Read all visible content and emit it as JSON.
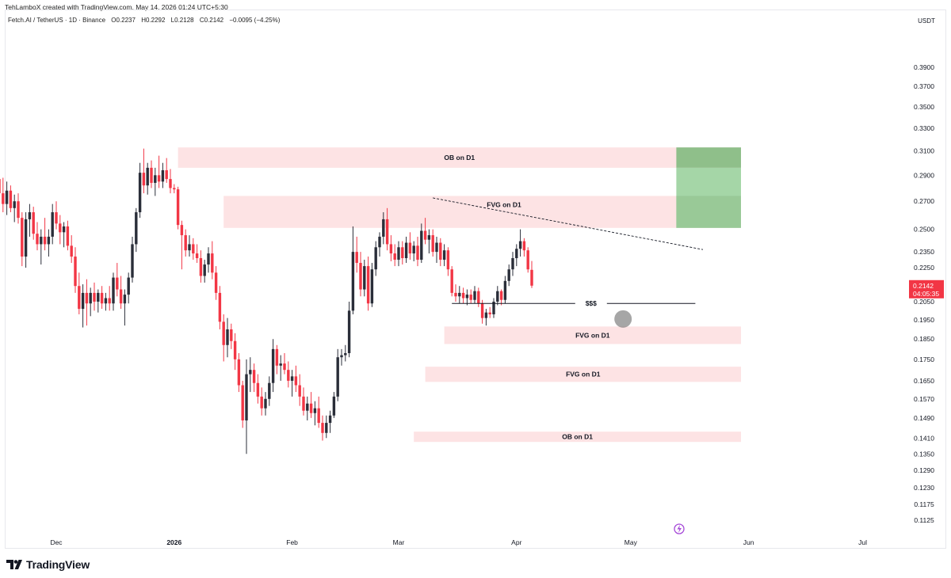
{
  "header": {
    "credit": "TehLamboX created with TradingView.com, May 14, 2026 01:24 UTC+5:30",
    "symbol": "Fetch.AI / TetherUS · 1D · Binance",
    "open": "O0.2237",
    "high": "H0.2292",
    "low": "L0.2128",
    "close": "C0.2142",
    "change": "−0.0095 (−4.25%)",
    "currency": "USDT"
  },
  "brand": {
    "name": "TradingView"
  },
  "colors": {
    "bull": "#2a2e39",
    "bear": "#f23645",
    "zone": "#fde3e4",
    "target": "#a5d6a7",
    "target_dark": "#8fbf8a",
    "price_tag": "#f23645"
  },
  "chart_data": {
    "type": "candlestick",
    "title": "Fetch.AI / TetherUS · 1D · Binance",
    "ylabel": "USDT",
    "yscale": "log",
    "ylim": [
      0.108,
      0.43
    ],
    "y_ticks": [
      "0.3900",
      "0.3700",
      "0.3500",
      "0.3300",
      "0.3100",
      "0.2900",
      "0.2700",
      "0.2500",
      "0.2350",
      "0.2250",
      "0.2050",
      "0.1950",
      "0.1850",
      "0.1750",
      "0.1650",
      "0.1570",
      "0.1490",
      "0.1410",
      "0.1350",
      "0.1290",
      "0.1230",
      "0.1175",
      "0.1125"
    ],
    "x_ticks": [
      {
        "label": "Dec",
        "date": "2025-12-01",
        "bold": false
      },
      {
        "label": "2026",
        "date": "2026-01-01",
        "bold": true
      },
      {
        "label": "Feb",
        "date": "2026-02-01",
        "bold": false
      },
      {
        "label": "Mar",
        "date": "2026-03-01",
        "bold": false
      },
      {
        "label": "Apr",
        "date": "2026-04-01",
        "bold": false
      },
      {
        "label": "May",
        "date": "2026-05-01",
        "bold": false
      },
      {
        "label": "Jun",
        "date": "2026-06-01",
        "bold": false
      },
      {
        "label": "Jul",
        "date": "2026-07-01",
        "bold": false
      }
    ],
    "first_candle_date": "2025-11-10",
    "last_price": "0.2142",
    "countdown": "04:05:35",
    "candles": [
      {
        "o": 0.285,
        "h": 0.322,
        "l": 0.268,
        "c": 0.302
      },
      {
        "o": 0.302,
        "h": 0.337,
        "l": 0.292,
        "c": 0.318
      },
      {
        "o": 0.318,
        "h": 0.345,
        "l": 0.3,
        "c": 0.307
      },
      {
        "o": 0.307,
        "h": 0.318,
        "l": 0.288,
        "c": 0.292
      },
      {
        "o": 0.292,
        "h": 0.3,
        "l": 0.27,
        "c": 0.278
      },
      {
        "o": 0.278,
        "h": 0.292,
        "l": 0.268,
        "c": 0.287
      },
      {
        "o": 0.287,
        "h": 0.295,
        "l": 0.272,
        "c": 0.276
      },
      {
        "o": 0.276,
        "h": 0.288,
        "l": 0.262,
        "c": 0.268
      },
      {
        "o": 0.268,
        "h": 0.285,
        "l": 0.26,
        "c": 0.278
      },
      {
        "o": 0.278,
        "h": 0.282,
        "l": 0.262,
        "c": 0.265
      },
      {
        "o": 0.265,
        "h": 0.275,
        "l": 0.255,
        "c": 0.27
      },
      {
        "o": 0.27,
        "h": 0.276,
        "l": 0.254,
        "c": 0.258
      },
      {
        "o": 0.258,
        "h": 0.262,
        "l": 0.226,
        "c": 0.232
      },
      {
        "o": 0.232,
        "h": 0.262,
        "l": 0.225,
        "c": 0.257
      },
      {
        "o": 0.257,
        "h": 0.268,
        "l": 0.245,
        "c": 0.262
      },
      {
        "o": 0.262,
        "h": 0.266,
        "l": 0.243,
        "c": 0.247
      },
      {
        "o": 0.247,
        "h": 0.255,
        "l": 0.236,
        "c": 0.24
      },
      {
        "o": 0.24,
        "h": 0.25,
        "l": 0.227,
        "c": 0.245
      },
      {
        "o": 0.245,
        "h": 0.258,
        "l": 0.236,
        "c": 0.24
      },
      {
        "o": 0.24,
        "h": 0.25,
        "l": 0.232,
        "c": 0.245
      },
      {
        "o": 0.245,
        "h": 0.268,
        "l": 0.24,
        "c": 0.262
      },
      {
        "o": 0.262,
        "h": 0.27,
        "l": 0.25,
        "c": 0.254
      },
      {
        "o": 0.254,
        "h": 0.26,
        "l": 0.24,
        "c": 0.248
      },
      {
        "o": 0.248,
        "h": 0.255,
        "l": 0.238,
        "c": 0.252
      },
      {
        "o": 0.252,
        "h": 0.256,
        "l": 0.236,
        "c": 0.239
      },
      {
        "o": 0.239,
        "h": 0.246,
        "l": 0.228,
        "c": 0.232
      },
      {
        "o": 0.232,
        "h": 0.238,
        "l": 0.21,
        "c": 0.214
      },
      {
        "o": 0.214,
        "h": 0.222,
        "l": 0.198,
        "c": 0.201
      },
      {
        "o": 0.201,
        "h": 0.215,
        "l": 0.191,
        "c": 0.21
      },
      {
        "o": 0.21,
        "h": 0.218,
        "l": 0.192,
        "c": 0.204
      },
      {
        "o": 0.204,
        "h": 0.213,
        "l": 0.197,
        "c": 0.21
      },
      {
        "o": 0.21,
        "h": 0.216,
        "l": 0.2,
        "c": 0.205
      },
      {
        "o": 0.205,
        "h": 0.212,
        "l": 0.199,
        "c": 0.21
      },
      {
        "o": 0.21,
        "h": 0.214,
        "l": 0.201,
        "c": 0.204
      },
      {
        "o": 0.204,
        "h": 0.21,
        "l": 0.2,
        "c": 0.207
      },
      {
        "o": 0.207,
        "h": 0.214,
        "l": 0.2,
        "c": 0.204
      },
      {
        "o": 0.204,
        "h": 0.222,
        "l": 0.2,
        "c": 0.219
      },
      {
        "o": 0.219,
        "h": 0.228,
        "l": 0.208,
        "c": 0.212
      },
      {
        "o": 0.212,
        "h": 0.22,
        "l": 0.201,
        "c": 0.204
      },
      {
        "o": 0.204,
        "h": 0.212,
        "l": 0.192,
        "c": 0.209
      },
      {
        "o": 0.209,
        "h": 0.222,
        "l": 0.204,
        "c": 0.219
      },
      {
        "o": 0.219,
        "h": 0.245,
        "l": 0.216,
        "c": 0.24
      },
      {
        "o": 0.24,
        "h": 0.265,
        "l": 0.235,
        "c": 0.262
      },
      {
        "o": 0.262,
        "h": 0.3,
        "l": 0.258,
        "c": 0.292
      },
      {
        "o": 0.292,
        "h": 0.312,
        "l": 0.276,
        "c": 0.282
      },
      {
        "o": 0.282,
        "h": 0.3,
        "l": 0.275,
        "c": 0.296
      },
      {
        "o": 0.296,
        "h": 0.302,
        "l": 0.28,
        "c": 0.284
      },
      {
        "o": 0.284,
        "h": 0.296,
        "l": 0.274,
        "c": 0.29
      },
      {
        "o": 0.29,
        "h": 0.306,
        "l": 0.28,
        "c": 0.285
      },
      {
        "o": 0.285,
        "h": 0.3,
        "l": 0.28,
        "c": 0.294
      },
      {
        "o": 0.294,
        "h": 0.304,
        "l": 0.284,
        "c": 0.287
      },
      {
        "o": 0.287,
        "h": 0.295,
        "l": 0.276,
        "c": 0.28
      },
      {
        "o": 0.28,
        "h": 0.283,
        "l": 0.276,
        "c": 0.279
      },
      {
        "o": 0.279,
        "h": 0.281,
        "l": 0.25,
        "c": 0.253
      },
      {
        "o": 0.253,
        "h": 0.256,
        "l": 0.224,
        "c": 0.246
      },
      {
        "o": 0.246,
        "h": 0.25,
        "l": 0.232,
        "c": 0.236
      },
      {
        "o": 0.236,
        "h": 0.246,
        "l": 0.232,
        "c": 0.24
      },
      {
        "o": 0.24,
        "h": 0.244,
        "l": 0.23,
        "c": 0.234
      },
      {
        "o": 0.234,
        "h": 0.24,
        "l": 0.228,
        "c": 0.231
      },
      {
        "o": 0.231,
        "h": 0.236,
        "l": 0.216,
        "c": 0.22
      },
      {
        "o": 0.22,
        "h": 0.23,
        "l": 0.216,
        "c": 0.227
      },
      {
        "o": 0.227,
        "h": 0.238,
        "l": 0.222,
        "c": 0.234
      },
      {
        "o": 0.234,
        "h": 0.242,
        "l": 0.218,
        "c": 0.222
      },
      {
        "o": 0.222,
        "h": 0.226,
        "l": 0.206,
        "c": 0.21
      },
      {
        "o": 0.21,
        "h": 0.214,
        "l": 0.19,
        "c": 0.194
      },
      {
        "o": 0.194,
        "h": 0.198,
        "l": 0.174,
        "c": 0.182
      },
      {
        "o": 0.182,
        "h": 0.196,
        "l": 0.176,
        "c": 0.19
      },
      {
        "o": 0.19,
        "h": 0.193,
        "l": 0.18,
        "c": 0.184
      },
      {
        "o": 0.184,
        "h": 0.188,
        "l": 0.17,
        "c": 0.175
      },
      {
        "o": 0.175,
        "h": 0.178,
        "l": 0.16,
        "c": 0.163
      },
      {
        "o": 0.163,
        "h": 0.165,
        "l": 0.145,
        "c": 0.148
      },
      {
        "o": 0.148,
        "h": 0.175,
        "l": 0.135,
        "c": 0.168
      },
      {
        "o": 0.168,
        "h": 0.176,
        "l": 0.16,
        "c": 0.17
      },
      {
        "o": 0.17,
        "h": 0.173,
        "l": 0.16,
        "c": 0.164
      },
      {
        "o": 0.164,
        "h": 0.168,
        "l": 0.155,
        "c": 0.158
      },
      {
        "o": 0.158,
        "h": 0.162,
        "l": 0.15,
        "c": 0.153
      },
      {
        "o": 0.153,
        "h": 0.16,
        "l": 0.15,
        "c": 0.157
      },
      {
        "o": 0.157,
        "h": 0.167,
        "l": 0.154,
        "c": 0.164
      },
      {
        "o": 0.164,
        "h": 0.185,
        "l": 0.16,
        "c": 0.18
      },
      {
        "o": 0.18,
        "h": 0.182,
        "l": 0.168,
        "c": 0.172
      },
      {
        "o": 0.172,
        "h": 0.177,
        "l": 0.165,
        "c": 0.173
      },
      {
        "o": 0.173,
        "h": 0.178,
        "l": 0.168,
        "c": 0.17
      },
      {
        "o": 0.17,
        "h": 0.174,
        "l": 0.162,
        "c": 0.165
      },
      {
        "o": 0.165,
        "h": 0.17,
        "l": 0.158,
        "c": 0.167
      },
      {
        "o": 0.167,
        "h": 0.172,
        "l": 0.16,
        "c": 0.163
      },
      {
        "o": 0.163,
        "h": 0.168,
        "l": 0.154,
        "c": 0.158
      },
      {
        "o": 0.158,
        "h": 0.162,
        "l": 0.15,
        "c": 0.152
      },
      {
        "o": 0.152,
        "h": 0.158,
        "l": 0.148,
        "c": 0.155
      },
      {
        "o": 0.155,
        "h": 0.16,
        "l": 0.149,
        "c": 0.151
      },
      {
        "o": 0.151,
        "h": 0.156,
        "l": 0.146,
        "c": 0.153
      },
      {
        "o": 0.153,
        "h": 0.158,
        "l": 0.145,
        "c": 0.147
      },
      {
        "o": 0.147,
        "h": 0.15,
        "l": 0.14,
        "c": 0.143
      },
      {
        "o": 0.143,
        "h": 0.15,
        "l": 0.141,
        "c": 0.147
      },
      {
        "o": 0.147,
        "h": 0.152,
        "l": 0.143,
        "c": 0.15
      },
      {
        "o": 0.15,
        "h": 0.16,
        "l": 0.149,
        "c": 0.158
      },
      {
        "o": 0.158,
        "h": 0.18,
        "l": 0.156,
        "c": 0.176
      },
      {
        "o": 0.176,
        "h": 0.18,
        "l": 0.172,
        "c": 0.177
      },
      {
        "o": 0.177,
        "h": 0.182,
        "l": 0.174,
        "c": 0.178
      },
      {
        "o": 0.178,
        "h": 0.205,
        "l": 0.176,
        "c": 0.2
      },
      {
        "o": 0.2,
        "h": 0.252,
        "l": 0.198,
        "c": 0.235
      },
      {
        "o": 0.235,
        "h": 0.245,
        "l": 0.222,
        "c": 0.228
      },
      {
        "o": 0.228,
        "h": 0.235,
        "l": 0.208,
        "c": 0.212
      },
      {
        "o": 0.212,
        "h": 0.23,
        "l": 0.208,
        "c": 0.226
      },
      {
        "o": 0.226,
        "h": 0.232,
        "l": 0.2,
        "c": 0.204
      },
      {
        "o": 0.204,
        "h": 0.228,
        "l": 0.202,
        "c": 0.224
      },
      {
        "o": 0.224,
        "h": 0.242,
        "l": 0.22,
        "c": 0.238
      },
      {
        "o": 0.238,
        "h": 0.248,
        "l": 0.232,
        "c": 0.245
      },
      {
        "o": 0.245,
        "h": 0.262,
        "l": 0.24,
        "c": 0.257
      },
      {
        "o": 0.257,
        "h": 0.265,
        "l": 0.236,
        "c": 0.24
      },
      {
        "o": 0.24,
        "h": 0.246,
        "l": 0.229,
        "c": 0.234
      },
      {
        "o": 0.234,
        "h": 0.24,
        "l": 0.226,
        "c": 0.23
      },
      {
        "o": 0.23,
        "h": 0.242,
        "l": 0.226,
        "c": 0.238
      },
      {
        "o": 0.238,
        "h": 0.242,
        "l": 0.227,
        "c": 0.231
      },
      {
        "o": 0.231,
        "h": 0.245,
        "l": 0.228,
        "c": 0.241
      },
      {
        "o": 0.241,
        "h": 0.248,
        "l": 0.23,
        "c": 0.234
      },
      {
        "o": 0.234,
        "h": 0.242,
        "l": 0.229,
        "c": 0.239
      },
      {
        "o": 0.239,
        "h": 0.245,
        "l": 0.226,
        "c": 0.23
      },
      {
        "o": 0.23,
        "h": 0.254,
        "l": 0.228,
        "c": 0.249
      },
      {
        "o": 0.249,
        "h": 0.258,
        "l": 0.24,
        "c": 0.243
      },
      {
        "o": 0.243,
        "h": 0.25,
        "l": 0.234,
        "c": 0.246
      },
      {
        "o": 0.246,
        "h": 0.25,
        "l": 0.232,
        "c": 0.235
      },
      {
        "o": 0.235,
        "h": 0.245,
        "l": 0.228,
        "c": 0.241
      },
      {
        "o": 0.241,
        "h": 0.244,
        "l": 0.226,
        "c": 0.23
      },
      {
        "o": 0.23,
        "h": 0.24,
        "l": 0.226,
        "c": 0.236
      },
      {
        "o": 0.236,
        "h": 0.238,
        "l": 0.22,
        "c": 0.224
      },
      {
        "o": 0.224,
        "h": 0.226,
        "l": 0.208,
        "c": 0.21
      },
      {
        "o": 0.21,
        "h": 0.215,
        "l": 0.205,
        "c": 0.208
      },
      {
        "o": 0.208,
        "h": 0.214,
        "l": 0.204,
        "c": 0.21
      },
      {
        "o": 0.21,
        "h": 0.213,
        "l": 0.204,
        "c": 0.207
      },
      {
        "o": 0.207,
        "h": 0.212,
        "l": 0.203,
        "c": 0.209
      },
      {
        "o": 0.209,
        "h": 0.212,
        "l": 0.204,
        "c": 0.206
      },
      {
        "o": 0.206,
        "h": 0.214,
        "l": 0.204,
        "c": 0.211
      },
      {
        "o": 0.211,
        "h": 0.213,
        "l": 0.202,
        "c": 0.204
      },
      {
        "o": 0.204,
        "h": 0.206,
        "l": 0.193,
        "c": 0.196
      },
      {
        "o": 0.196,
        "h": 0.201,
        "l": 0.192,
        "c": 0.199
      },
      {
        "o": 0.199,
        "h": 0.202,
        "l": 0.196,
        "c": 0.198
      },
      {
        "o": 0.198,
        "h": 0.207,
        "l": 0.196,
        "c": 0.205
      },
      {
        "o": 0.205,
        "h": 0.214,
        "l": 0.203,
        "c": 0.211
      },
      {
        "o": 0.211,
        "h": 0.212,
        "l": 0.203,
        "c": 0.206
      },
      {
        "o": 0.206,
        "h": 0.22,
        "l": 0.204,
        "c": 0.217
      },
      {
        "o": 0.217,
        "h": 0.227,
        "l": 0.214,
        "c": 0.224
      },
      {
        "o": 0.224,
        "h": 0.235,
        "l": 0.22,
        "c": 0.231
      },
      {
        "o": 0.231,
        "h": 0.24,
        "l": 0.226,
        "c": 0.237
      },
      {
        "o": 0.237,
        "h": 0.25,
        "l": 0.232,
        "c": 0.242
      },
      {
        "o": 0.242,
        "h": 0.244,
        "l": 0.232,
        "c": 0.236
      },
      {
        "o": 0.236,
        "h": 0.238,
        "l": 0.222,
        "c": 0.224
      },
      {
        "o": 0.2237,
        "h": 0.2292,
        "l": 0.2128,
        "c": 0.2142
      }
    ],
    "zones": [
      {
        "label": "OB on D1",
        "top": 0.313,
        "bottom": 0.296,
        "from": "2026-01-02",
        "to": "2026-05-30"
      },
      {
        "label": "FVG on D1",
        "top": 0.274,
        "bottom": 0.251,
        "from": "2026-01-14",
        "to": "2026-05-30"
      },
      {
        "label": "FVG on D1",
        "top": 0.1915,
        "bottom": 0.1825,
        "from": "2026-03-13",
        "to": "2026-05-30"
      },
      {
        "label": "FVG on D1",
        "top": 0.1715,
        "bottom": 0.1645,
        "from": "2026-03-08",
        "to": "2026-05-30"
      },
      {
        "label": "OB on D1",
        "top": 0.1435,
        "bottom": 0.1395,
        "from": "2026-03-05",
        "to": "2026-05-30"
      }
    ],
    "target_box": {
      "top": 0.313,
      "mid": 0.296,
      "bottom": 0.251,
      "from": "2026-05-13",
      "to": "2026-05-30"
    },
    "trendline": {
      "x1": "2026-03-10",
      "y1": 0.2725,
      "x2": "2026-05-20",
      "y2": 0.2365
    },
    "liquidity_line": {
      "label": "$$$",
      "from": "2026-03-15",
      "to": "2026-05-18",
      "y": 0.204
    },
    "sweep_marker": {
      "date": "2026-04-29",
      "y": 0.1955
    }
  }
}
